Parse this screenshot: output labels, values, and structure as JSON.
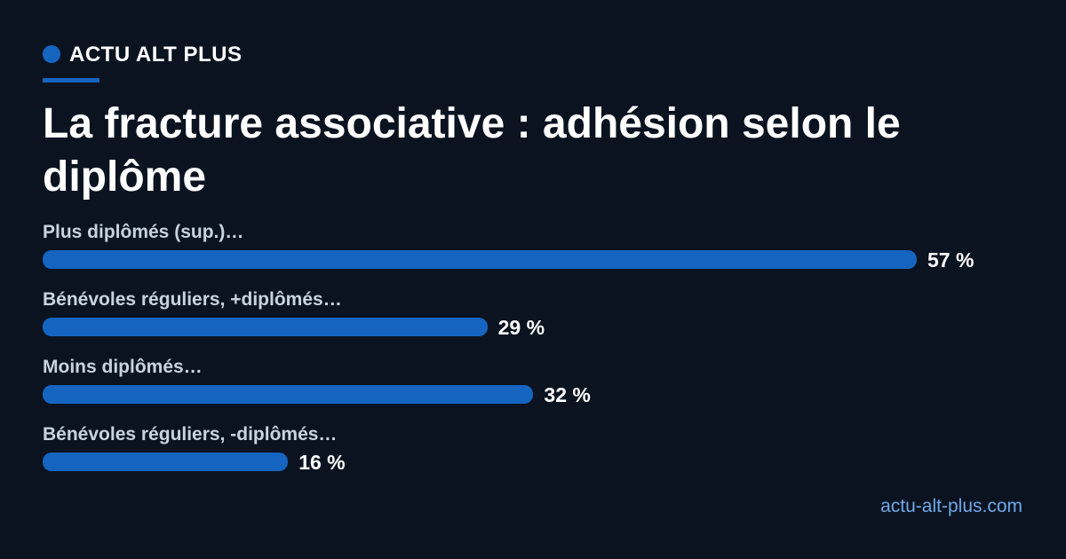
{
  "brand": "ACTU ALT PLUS",
  "chart_data": {
    "type": "bar",
    "orientation": "horizontal",
    "title": "La fracture associative : adhésion selon le diplôme",
    "categories": [
      "Plus diplômés (sup.)…",
      "Bénévoles réguliers, +diplômés…",
      "Moins diplômés…",
      "Bénévoles réguliers, -diplômés…"
    ],
    "values": [
      57,
      29,
      32,
      16
    ],
    "value_labels": [
      "57 %",
      "29 %",
      "32 %",
      "16 %"
    ],
    "color": "#1565c0"
  },
  "source": "actu-alt-plus.com"
}
